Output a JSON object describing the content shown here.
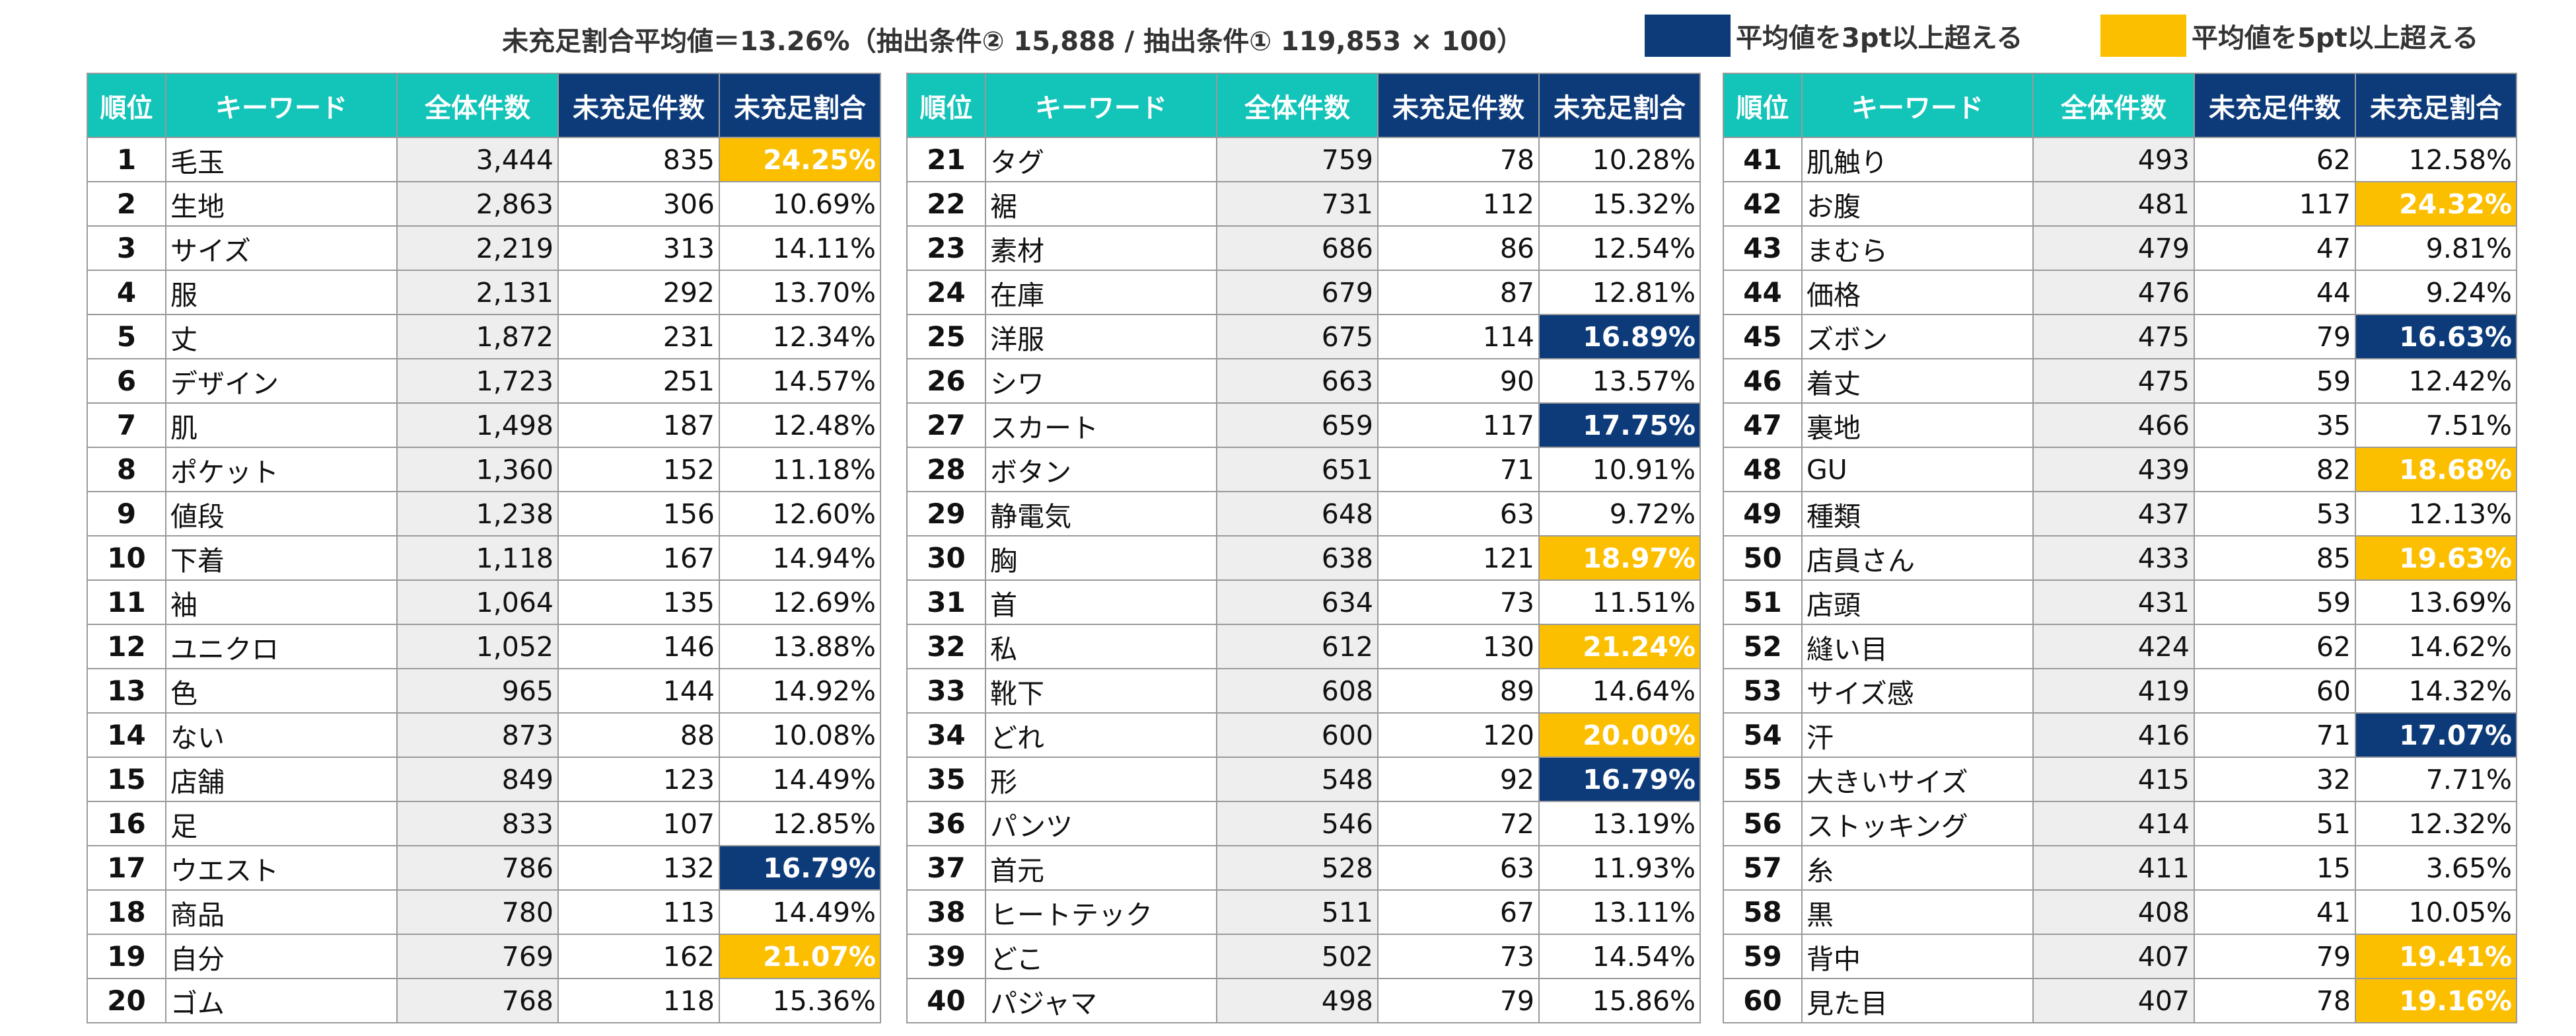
{
  "header": {
    "summary": "未充足割合平均値＝13.26%（抽出条件② 15,888 / 抽出条件① 119,853 × 100）",
    "legend": [
      {
        "color": "#0d3b7a",
        "label": "平均値を3pt以上超える"
      },
      {
        "color": "#fcbf00",
        "label": "平均値を5pt以上超える"
      }
    ]
  },
  "columns": [
    "順位",
    "キーワード",
    "全体件数",
    "未充足件数",
    "未充足割合"
  ],
  "colors": {
    "teal_header": "#13c4b9",
    "navy_header": "#0d3b7a",
    "navy_highlight": "#0d3b7a",
    "gold_highlight": "#fcbf00",
    "total_bg": "#eeeeee"
  },
  "tables": [
    {
      "rows": [
        {
          "rank": "1",
          "keyword": "毛玉",
          "total": "3,444",
          "unmet": "835",
          "ratio": "24.25%",
          "hl": "gold"
        },
        {
          "rank": "2",
          "keyword": "生地",
          "total": "2,863",
          "unmet": "306",
          "ratio": "10.69%",
          "hl": ""
        },
        {
          "rank": "3",
          "keyword": "サイズ",
          "total": "2,219",
          "unmet": "313",
          "ratio": "14.11%",
          "hl": ""
        },
        {
          "rank": "4",
          "keyword": "服",
          "total": "2,131",
          "unmet": "292",
          "ratio": "13.70%",
          "hl": ""
        },
        {
          "rank": "5",
          "keyword": "丈",
          "total": "1,872",
          "unmet": "231",
          "ratio": "12.34%",
          "hl": ""
        },
        {
          "rank": "6",
          "keyword": "デザイン",
          "total": "1,723",
          "unmet": "251",
          "ratio": "14.57%",
          "hl": ""
        },
        {
          "rank": "7",
          "keyword": "肌",
          "total": "1,498",
          "unmet": "187",
          "ratio": "12.48%",
          "hl": ""
        },
        {
          "rank": "8",
          "keyword": "ポケット",
          "total": "1,360",
          "unmet": "152",
          "ratio": "11.18%",
          "hl": ""
        },
        {
          "rank": "9",
          "keyword": "値段",
          "total": "1,238",
          "unmet": "156",
          "ratio": "12.60%",
          "hl": ""
        },
        {
          "rank": "10",
          "keyword": "下着",
          "total": "1,118",
          "unmet": "167",
          "ratio": "14.94%",
          "hl": ""
        },
        {
          "rank": "11",
          "keyword": "袖",
          "total": "1,064",
          "unmet": "135",
          "ratio": "12.69%",
          "hl": ""
        },
        {
          "rank": "12",
          "keyword": "ユニクロ",
          "total": "1,052",
          "unmet": "146",
          "ratio": "13.88%",
          "hl": ""
        },
        {
          "rank": "13",
          "keyword": "色",
          "total": "965",
          "unmet": "144",
          "ratio": "14.92%",
          "hl": ""
        },
        {
          "rank": "14",
          "keyword": "ない",
          "total": "873",
          "unmet": "88",
          "ratio": "10.08%",
          "hl": ""
        },
        {
          "rank": "15",
          "keyword": "店舗",
          "total": "849",
          "unmet": "123",
          "ratio": "14.49%",
          "hl": ""
        },
        {
          "rank": "16",
          "keyword": "足",
          "total": "833",
          "unmet": "107",
          "ratio": "12.85%",
          "hl": ""
        },
        {
          "rank": "17",
          "keyword": "ウエスト",
          "total": "786",
          "unmet": "132",
          "ratio": "16.79%",
          "hl": "navy"
        },
        {
          "rank": "18",
          "keyword": "商品",
          "total": "780",
          "unmet": "113",
          "ratio": "14.49%",
          "hl": ""
        },
        {
          "rank": "19",
          "keyword": "自分",
          "total": "769",
          "unmet": "162",
          "ratio": "21.07%",
          "hl": "gold"
        },
        {
          "rank": "20",
          "keyword": "ゴム",
          "total": "768",
          "unmet": "118",
          "ratio": "15.36%",
          "hl": ""
        }
      ]
    },
    {
      "rows": [
        {
          "rank": "21",
          "keyword": "タグ",
          "total": "759",
          "unmet": "78",
          "ratio": "10.28%",
          "hl": ""
        },
        {
          "rank": "22",
          "keyword": "裾",
          "total": "731",
          "unmet": "112",
          "ratio": "15.32%",
          "hl": ""
        },
        {
          "rank": "23",
          "keyword": "素材",
          "total": "686",
          "unmet": "86",
          "ratio": "12.54%",
          "hl": ""
        },
        {
          "rank": "24",
          "keyword": "在庫",
          "total": "679",
          "unmet": "87",
          "ratio": "12.81%",
          "hl": ""
        },
        {
          "rank": "25",
          "keyword": "洋服",
          "total": "675",
          "unmet": "114",
          "ratio": "16.89%",
          "hl": "navy"
        },
        {
          "rank": "26",
          "keyword": "シワ",
          "total": "663",
          "unmet": "90",
          "ratio": "13.57%",
          "hl": ""
        },
        {
          "rank": "27",
          "keyword": "スカート",
          "total": "659",
          "unmet": "117",
          "ratio": "17.75%",
          "hl": "navy"
        },
        {
          "rank": "28",
          "keyword": "ボタン",
          "total": "651",
          "unmet": "71",
          "ratio": "10.91%",
          "hl": ""
        },
        {
          "rank": "29",
          "keyword": "静電気",
          "total": "648",
          "unmet": "63",
          "ratio": "9.72%",
          "hl": ""
        },
        {
          "rank": "30",
          "keyword": "胸",
          "total": "638",
          "unmet": "121",
          "ratio": "18.97%",
          "hl": "gold"
        },
        {
          "rank": "31",
          "keyword": "首",
          "total": "634",
          "unmet": "73",
          "ratio": "11.51%",
          "hl": ""
        },
        {
          "rank": "32",
          "keyword": "私",
          "total": "612",
          "unmet": "130",
          "ratio": "21.24%",
          "hl": "gold"
        },
        {
          "rank": "33",
          "keyword": "靴下",
          "total": "608",
          "unmet": "89",
          "ratio": "14.64%",
          "hl": ""
        },
        {
          "rank": "34",
          "keyword": "どれ",
          "total": "600",
          "unmet": "120",
          "ratio": "20.00%",
          "hl": "gold"
        },
        {
          "rank": "35",
          "keyword": "形",
          "total": "548",
          "unmet": "92",
          "ratio": "16.79%",
          "hl": "navy"
        },
        {
          "rank": "36",
          "keyword": "パンツ",
          "total": "546",
          "unmet": "72",
          "ratio": "13.19%",
          "hl": ""
        },
        {
          "rank": "37",
          "keyword": "首元",
          "total": "528",
          "unmet": "63",
          "ratio": "11.93%",
          "hl": ""
        },
        {
          "rank": "38",
          "keyword": "ヒートテック",
          "total": "511",
          "unmet": "67",
          "ratio": "13.11%",
          "hl": ""
        },
        {
          "rank": "39",
          "keyword": "どこ",
          "total": "502",
          "unmet": "73",
          "ratio": "14.54%",
          "hl": ""
        },
        {
          "rank": "40",
          "keyword": "パジャマ",
          "total": "498",
          "unmet": "79",
          "ratio": "15.86%",
          "hl": ""
        }
      ]
    },
    {
      "rows": [
        {
          "rank": "41",
          "keyword": "肌触り",
          "total": "493",
          "unmet": "62",
          "ratio": "12.58%",
          "hl": ""
        },
        {
          "rank": "42",
          "keyword": "お腹",
          "total": "481",
          "unmet": "117",
          "ratio": "24.32%",
          "hl": "gold"
        },
        {
          "rank": "43",
          "keyword": "まむら",
          "total": "479",
          "unmet": "47",
          "ratio": "9.81%",
          "hl": ""
        },
        {
          "rank": "44",
          "keyword": "価格",
          "total": "476",
          "unmet": "44",
          "ratio": "9.24%",
          "hl": ""
        },
        {
          "rank": "45",
          "keyword": "ズボン",
          "total": "475",
          "unmet": "79",
          "ratio": "16.63%",
          "hl": "navy"
        },
        {
          "rank": "46",
          "keyword": "着丈",
          "total": "475",
          "unmet": "59",
          "ratio": "12.42%",
          "hl": ""
        },
        {
          "rank": "47",
          "keyword": "裏地",
          "total": "466",
          "unmet": "35",
          "ratio": "7.51%",
          "hl": ""
        },
        {
          "rank": "48",
          "keyword": "GU",
          "total": "439",
          "unmet": "82",
          "ratio": "18.68%",
          "hl": "gold"
        },
        {
          "rank": "49",
          "keyword": "種類",
          "total": "437",
          "unmet": "53",
          "ratio": "12.13%",
          "hl": ""
        },
        {
          "rank": "50",
          "keyword": "店員さん",
          "total": "433",
          "unmet": "85",
          "ratio": "19.63%",
          "hl": "gold"
        },
        {
          "rank": "51",
          "keyword": "店頭",
          "total": "431",
          "unmet": "59",
          "ratio": "13.69%",
          "hl": ""
        },
        {
          "rank": "52",
          "keyword": "縫い目",
          "total": "424",
          "unmet": "62",
          "ratio": "14.62%",
          "hl": ""
        },
        {
          "rank": "53",
          "keyword": "サイズ感",
          "total": "419",
          "unmet": "60",
          "ratio": "14.32%",
          "hl": ""
        },
        {
          "rank": "54",
          "keyword": "汗",
          "total": "416",
          "unmet": "71",
          "ratio": "17.07%",
          "hl": "navy"
        },
        {
          "rank": "55",
          "keyword": "大きいサイズ",
          "total": "415",
          "unmet": "32",
          "ratio": "7.71%",
          "hl": ""
        },
        {
          "rank": "56",
          "keyword": "ストッキング",
          "total": "414",
          "unmet": "51",
          "ratio": "12.32%",
          "hl": ""
        },
        {
          "rank": "57",
          "keyword": "糸",
          "total": "411",
          "unmet": "15",
          "ratio": "3.65%",
          "hl": ""
        },
        {
          "rank": "58",
          "keyword": "黒",
          "total": "408",
          "unmet": "41",
          "ratio": "10.05%",
          "hl": ""
        },
        {
          "rank": "59",
          "keyword": "背中",
          "total": "407",
          "unmet": "79",
          "ratio": "19.41%",
          "hl": "gold"
        },
        {
          "rank": "60",
          "keyword": "見た目",
          "total": "407",
          "unmet": "78",
          "ratio": "19.16%",
          "hl": "gold"
        }
      ]
    }
  ]
}
